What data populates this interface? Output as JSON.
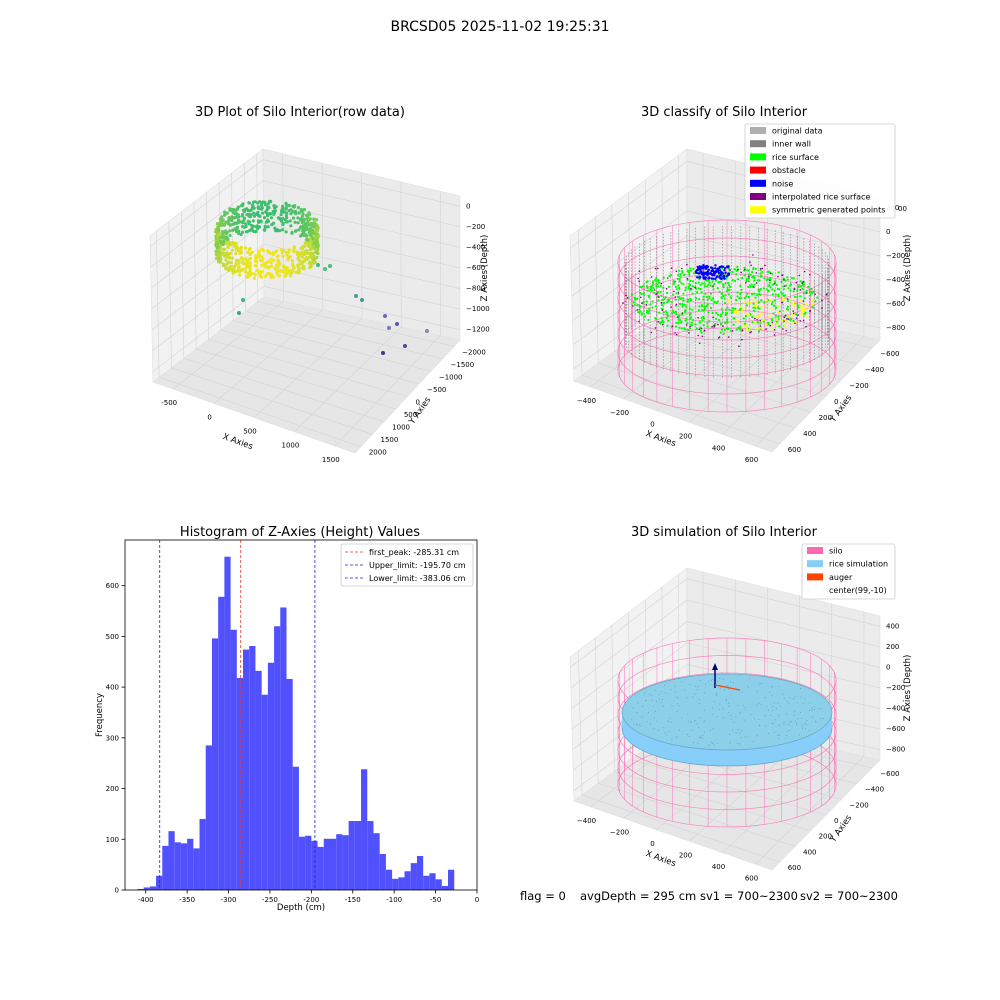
{
  "figure_title": "BRCSD05 2025-11-02 19:25:31",
  "footer": {
    "flag": "flag = 0",
    "avg_depth": "avgDepth = 295 cm",
    "sv1": "sv1 = 700~2300",
    "sv2": "sv2 = 700~2300"
  },
  "colors": {
    "bar": "#4a4afc",
    "first_peak": "#e53935",
    "limits": "#2222dd",
    "silo": "#ff69b4",
    "rice_simulation": "#87cefa",
    "auger": "#ff4500",
    "original_data": "#b0b0b0",
    "inner_wall": "#808080",
    "rice_surface": "#00ff00",
    "obstacle": "#ff0000",
    "noise": "#0000ff",
    "interpolated": "#800080",
    "symmetric": "#ffff00"
  },
  "chart_data": [
    {
      "type": "scatter",
      "title": "3D Plot of Silo Interior(row data)",
      "xlabel": "X Axies",
      "ylabel": "Y Axies",
      "zlabel": "Z Axies (Depth)",
      "x_ticks": [
        "-500",
        "0",
        "500",
        "1000",
        "1500"
      ],
      "y_ticks": [
        "2000",
        "1500",
        "1000",
        "500",
        "0",
        "−500",
        "−1000",
        "−1500",
        "−2000"
      ],
      "z_ticks": [
        "0",
        "−200",
        "−400",
        "−600",
        "−800",
        "−1000",
        "−1200"
      ]
    },
    {
      "type": "scatter",
      "title": "3D classify of Silo Interior",
      "xlabel": "X Axies",
      "ylabel": "Y Axies",
      "zlabel": "Z Axies (Depth)",
      "x_ticks": [
        "−400",
        "−200",
        "0",
        "200",
        "400",
        "600"
      ],
      "y_ticks": [
        "600",
        "400",
        "200",
        "0",
        "−200",
        "−400",
        "−600"
      ],
      "z_ticks": [
        "200",
        "0",
        "−200",
        "−400",
        "−600",
        "−800"
      ],
      "z_tick_partial": "00",
      "legend": [
        "original data",
        "inner wall",
        "rice surface",
        "obstacle",
        "noise",
        "interpolated rice surface",
        "symmetric generated points"
      ],
      "legend_position": "top-right"
    },
    {
      "type": "bar",
      "title": "Histogram of Z-Axies (Height) Values",
      "xlabel": "Depth (cm)",
      "ylabel": "Frequency",
      "xlim": [
        -425,
        0
      ],
      "ylim": [
        0,
        690
      ],
      "x_ticks": [
        -400,
        -350,
        -300,
        -250,
        -200,
        -150,
        -100,
        -50,
        0
      ],
      "y_ticks": [
        0,
        100,
        200,
        300,
        400,
        500,
        600
      ],
      "bin_width": 7.5,
      "bin_starts": [
        -410,
        -402.5,
        -395,
        -387.5,
        -380,
        -372.5,
        -365,
        -357.5,
        -350,
        -342.5,
        -335,
        -327.5,
        -320,
        -312.5,
        -305,
        -297.5,
        -290,
        -282.5,
        -275,
        -267.5,
        -260,
        -252.5,
        -245,
        -237.5,
        -230,
        -222.5,
        -215,
        -207.5,
        -200,
        -192.5,
        -185,
        -177.5,
        -170,
        -162.5,
        -155,
        -147.5,
        -140,
        -132.5,
        -125,
        -117.5,
        -110,
        -102.5,
        -95,
        -87.5,
        -80,
        -72.5,
        -65,
        -57.5,
        -50,
        -42.5,
        -35,
        -27.5,
        -20,
        -12.5,
        -5
      ],
      "values": [
        2,
        5,
        7,
        28,
        87,
        116,
        94,
        92,
        101,
        82,
        140,
        285,
        496,
        578,
        657,
        513,
        418,
        474,
        481,
        432,
        385,
        448,
        520,
        557,
        416,
        243,
        105,
        107,
        97,
        85,
        101,
        101,
        110,
        108,
        136,
        136,
        238,
        136,
        112,
        71,
        40,
        22,
        25,
        37,
        53,
        67,
        28,
        33,
        21,
        8,
        40,
        0,
        0,
        0,
        0
      ],
      "lines": [
        {
          "label": "first_peak: -285.31 cm",
          "x": -285.31,
          "style": "dashed",
          "color": "#e53935"
        },
        {
          "label": "Upper_limit: -195.70 cm",
          "x": -195.7,
          "style": "dashed",
          "color": "#2222dd"
        },
        {
          "label": "Lower_limit: -383.06 cm",
          "x": -383.06,
          "style": "dashed",
          "color": "#2222dd"
        }
      ],
      "legend_position": "top-right"
    },
    {
      "type": "scatter",
      "title": "3D simulation of Silo Interior",
      "xlabel": "X Axies",
      "ylabel": "Y Axies",
      "zlabel": "Z Axies (Depth)",
      "x_ticks": [
        "−400",
        "−200",
        "0",
        "200",
        "400",
        "600"
      ],
      "y_ticks": [
        "600",
        "400",
        "200",
        "0",
        "−200",
        "−400",
        "−600"
      ],
      "z_ticks": [
        "400",
        "200",
        "0",
        "−200",
        "−400",
        "−600",
        "−800"
      ],
      "legend": [
        "silo",
        "rice simulation",
        "auger",
        "center(99,-10)"
      ],
      "legend_position": "top-right"
    }
  ]
}
